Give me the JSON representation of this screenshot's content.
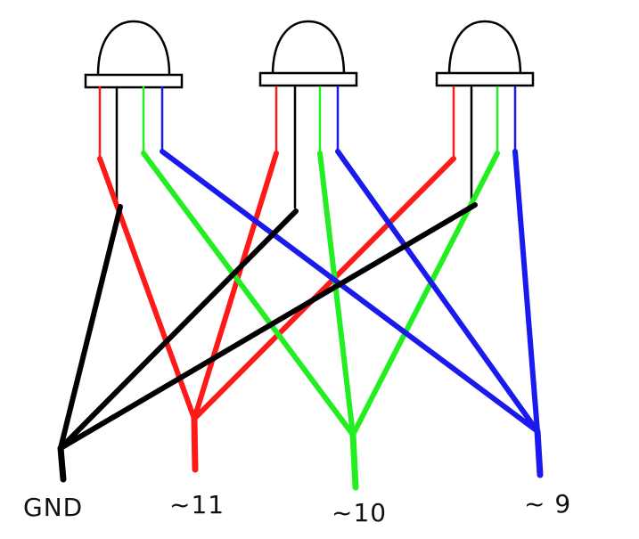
{
  "colors": {
    "red": "#ff1a1a",
    "black": "#000000",
    "green": "#22ee22",
    "blue": "#1a1aee",
    "outline": "#000000"
  },
  "leds": [
    {
      "name": "rgb-led-1",
      "legs": [
        "red",
        "black",
        "green",
        "blue"
      ]
    },
    {
      "name": "rgb-led-2",
      "legs": [
        "red",
        "black",
        "green",
        "blue"
      ]
    },
    {
      "name": "rgb-led-3",
      "legs": [
        "red",
        "black",
        "green",
        "blue"
      ]
    }
  ],
  "pins": [
    {
      "label": "GND",
      "color": "black"
    },
    {
      "label": "~11",
      "color": "red"
    },
    {
      "label": "~10",
      "color": "green"
    },
    {
      "label": "~ 9",
      "color": "blue"
    }
  ]
}
